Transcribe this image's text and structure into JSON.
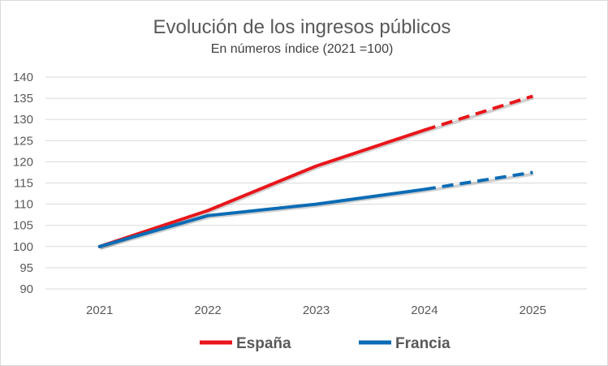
{
  "chart_data": {
    "type": "line",
    "title": "Evolución de los ingresos públicos",
    "subtitle": "En números índice (2021 =100)",
    "xlabel": "",
    "ylabel": "",
    "categories": [
      "2021",
      "2022",
      "2023",
      "2024",
      "2025"
    ],
    "ylim": [
      90,
      140
    ],
    "yticks": [
      90,
      95,
      100,
      105,
      110,
      115,
      120,
      125,
      130,
      135,
      140
    ],
    "grid": true,
    "legend_position": "bottom",
    "series": [
      {
        "name": "España",
        "color": "#e8161b",
        "values": [
          100,
          108.5,
          119,
          127.5,
          135.5
        ],
        "projected_from_index": 3
      },
      {
        "name": "Francia",
        "color": "#0b6cb5",
        "values": [
          100,
          107.3,
          110,
          113.5,
          117.5
        ],
        "projected_from_index": 3
      }
    ]
  }
}
